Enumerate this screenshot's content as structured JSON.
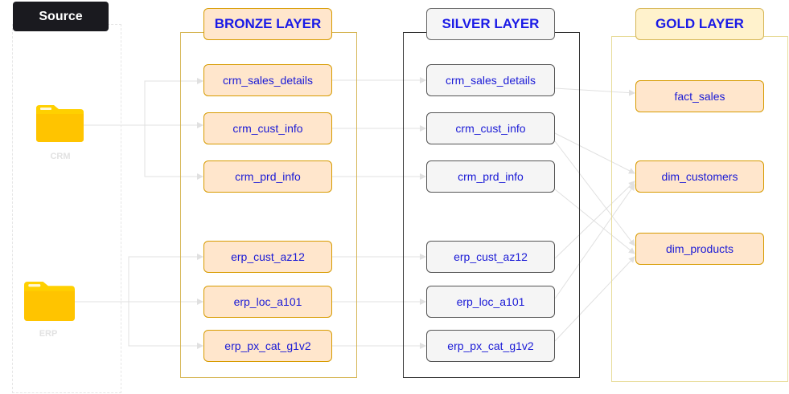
{
  "source": {
    "title": "Source",
    "systems": [
      {
        "label": "CRM",
        "icon": "folder-icon"
      },
      {
        "label": "ERP",
        "icon": "folder-icon"
      }
    ]
  },
  "layers": {
    "bronze": {
      "title": "BRONZE LAYER",
      "tables": [
        "crm_sales_details",
        "crm_cust_info",
        "crm_prd_info",
        "erp_cust_az12",
        "erp_loc_a101",
        "erp_px_cat_g1v2"
      ]
    },
    "silver": {
      "title": "SILVER LAYER",
      "tables": [
        "crm_sales_details",
        "crm_cust_info",
        "crm_prd_info",
        "erp_cust_az12",
        "erp_loc_a101",
        "erp_px_cat_g1v2"
      ]
    },
    "gold": {
      "title": "GOLD LAYER",
      "tables": [
        "fact_sales",
        "dim_customers",
        "dim_products"
      ]
    }
  },
  "colors": {
    "title_text": "#1a1ae6",
    "node_text": "#1a1ad6",
    "bronze_fill": "#ffe6cc",
    "bronze_stroke": "#d79b00",
    "silver_fill": "#f5f5f5",
    "silver_stroke": "#555555",
    "gold_title_fill": "#fff2cc",
    "gold_stroke": "#d6b656",
    "folder": "#ffd000",
    "edge": "#e0e0e0"
  }
}
